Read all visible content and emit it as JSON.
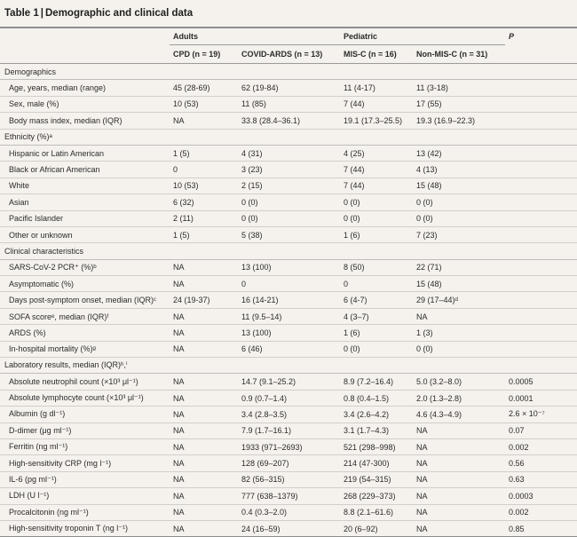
{
  "table": {
    "number": "Table 1",
    "separator": "|",
    "title": "Demographic and clinical data",
    "groups": {
      "adults": "Adults",
      "pediatric": "Pediatric",
      "p": "P"
    },
    "columns": [
      "CPD (n = 19)",
      "COVID-ARDS (n = 13)",
      "MIS-C (n = 16)",
      "Non-MIS-C (n = 31)"
    ],
    "rows": [
      {
        "type": "section",
        "label": "Demographics"
      },
      {
        "type": "row",
        "label": "Age, years, median (range)",
        "cells": [
          "45 (28-69)",
          "62 (19-84)",
          "11 (4-17)",
          "11 (3-18)",
          ""
        ]
      },
      {
        "type": "row",
        "label": "Sex, male (%)",
        "cells": [
          "10 (53)",
          "11 (85)",
          "7 (44)",
          "17 (55)",
          ""
        ]
      },
      {
        "type": "row",
        "label": "Body mass index, median (IQR)",
        "cells": [
          "NA",
          "33.8 (28.4–36.1)",
          "19.1 (17.3–25.5)",
          "19.3 (16.9–22.3)",
          ""
        ]
      },
      {
        "type": "section",
        "label": "Ethnicity (%)ᵃ"
      },
      {
        "type": "row",
        "label": "Hispanic or Latin American",
        "cells": [
          "1 (5)",
          "4 (31)",
          "4 (25)",
          "13 (42)",
          ""
        ]
      },
      {
        "type": "row",
        "label": "Black or African American",
        "cells": [
          "0",
          "3 (23)",
          "7 (44)",
          "4 (13)",
          ""
        ]
      },
      {
        "type": "row",
        "label": "White",
        "cells": [
          "10 (53)",
          "2 (15)",
          "7 (44)",
          "15 (48)",
          ""
        ]
      },
      {
        "type": "row",
        "label": "Asian",
        "cells": [
          "6 (32)",
          "0 (0)",
          "0 (0)",
          "0 (0)",
          ""
        ]
      },
      {
        "type": "row",
        "label": "Pacific Islander",
        "cells": [
          "2 (11)",
          "0 (0)",
          "0 (0)",
          "0 (0)",
          ""
        ]
      },
      {
        "type": "row",
        "label": "Other or unknown",
        "cells": [
          "1 (5)",
          "5 (38)",
          "1 (6)",
          "7 (23)",
          ""
        ]
      },
      {
        "type": "section",
        "label": "Clinical characteristics"
      },
      {
        "type": "row",
        "label": "SARS-CoV-2 PCR⁺ (%)ᵇ",
        "cells": [
          "NA",
          "13 (100)",
          "8 (50)",
          "22 (71)",
          ""
        ]
      },
      {
        "type": "row",
        "label": "Asymptomatic (%)",
        "cells": [
          "NA",
          "0",
          "0",
          "15 (48)",
          ""
        ]
      },
      {
        "type": "row",
        "label": "Days post-symptom onset, median (IQR)ᶜ",
        "cells": [
          "24 (19-37)",
          "16 (14-21)",
          "6 (4-7)",
          "29 (17–44)ᵈ",
          ""
        ]
      },
      {
        "type": "row",
        "label": "SOFA scoreᵉ, median (IQR)ᶠ",
        "cells": [
          "NA",
          "11 (9.5–14)",
          "4 (3–7)",
          "NA",
          ""
        ]
      },
      {
        "type": "row",
        "label": "ARDS (%)",
        "cells": [
          "NA",
          "13 (100)",
          "1 (6)",
          "1 (3)",
          ""
        ]
      },
      {
        "type": "row",
        "label": "In-hospital mortality (%)ᵍ",
        "cells": [
          "NA",
          "6 (46)",
          "0 (0)",
          "0 (0)",
          ""
        ]
      },
      {
        "type": "section",
        "label": "Laboratory results, median (IQR)ʰ,ⁱ"
      },
      {
        "type": "row",
        "label": "Absolute neutrophil count (×10³ μl⁻¹)",
        "cells": [
          "NA",
          "14.7 (9.1–25.2)",
          "8.9 (7.2–16.4)",
          "5.0 (3.2–8.0)",
          "0.0005"
        ]
      },
      {
        "type": "row",
        "label": "Absolute lymphocyte count (×10³ μl⁻¹)",
        "cells": [
          "NA",
          "0.9 (0.7–1.4)",
          "0.8 (0.4–1.5)",
          "2.0 (1.3–2.8)",
          "0.0001"
        ]
      },
      {
        "type": "row",
        "label": "Albumin (g dl⁻¹)",
        "cells": [
          "NA",
          "3.4 (2.8–3.5)",
          "3.4 (2.6–4.2)",
          "4.6 (4.3–4.9)",
          "2.6 × 10⁻⁷"
        ]
      },
      {
        "type": "row",
        "label": "D-dimer (μg ml⁻¹)",
        "cells": [
          "NA",
          "7.9 (1.7–16.1)",
          "3.1 (1.7–4.3)",
          "NA",
          "0.07"
        ]
      },
      {
        "type": "row",
        "label": "Ferritin (ng ml⁻¹)",
        "cells": [
          "NA",
          "1933 (971–2693)",
          "521 (298–998)",
          "NA",
          "0.002"
        ]
      },
      {
        "type": "row",
        "label": "High-sensitivity CRP (mg l⁻¹)",
        "cells": [
          "NA",
          "128 (69–207)",
          "214 (47-300)",
          "NA",
          "0.56"
        ]
      },
      {
        "type": "row",
        "label": "IL-6 (pg ml⁻¹)",
        "cells": [
          "NA",
          "82 (56–315)",
          "219 (54–315)",
          "NA",
          "0.63"
        ]
      },
      {
        "type": "row",
        "label": "LDH (U l⁻¹)",
        "cells": [
          "NA",
          "777 (638–1379)",
          "268 (229–373)",
          "NA",
          "0.0003"
        ]
      },
      {
        "type": "row",
        "label": "Procalcitonin (ng ml⁻¹)",
        "cells": [
          "NA",
          "0.4 (0.3–2.0)",
          "8.8 (2.1–61.6)",
          "NA",
          "0.002"
        ]
      },
      {
        "type": "row",
        "label": "High-sensitivity troponin T (ng l⁻¹)",
        "cells": [
          "NA",
          "24 (16–59)",
          "20 (6–92)",
          "NA",
          "0.85"
        ]
      }
    ]
  }
}
